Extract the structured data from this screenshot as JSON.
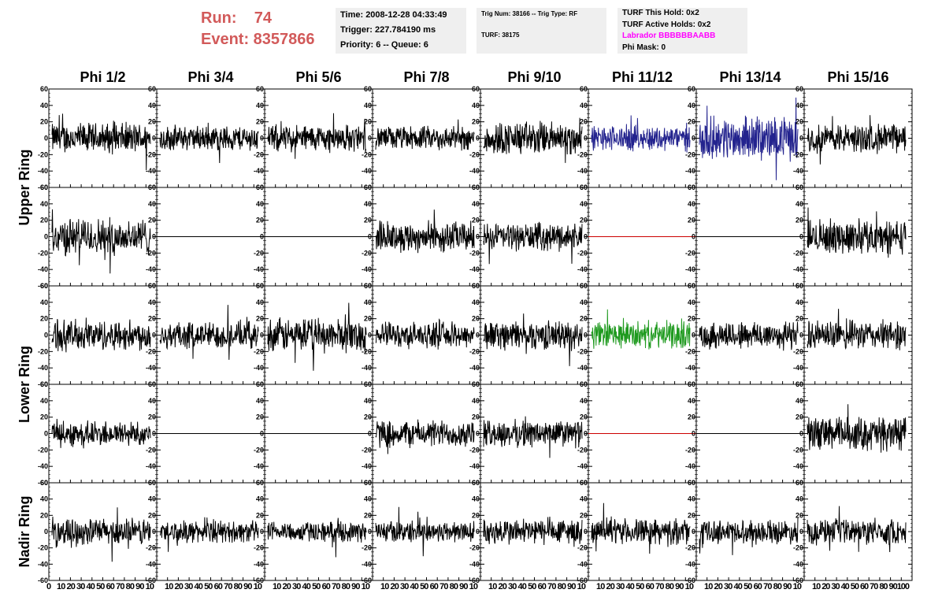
{
  "header": {
    "run_label": "Run:    74",
    "event_label": "Event: 8357866",
    "time_line": "Time: 2008-12-28 04:33:49",
    "trigger_line": "Trigger: 227.784190 ms",
    "priority_line": "Priority: 6 -- Queue: 6",
    "trig_num_line": "Trig Num: 38166 -- Trig Type: RF",
    "turf_line": "TURF: 38175",
    "turf_hold_line": "TURF This Hold: 0x2",
    "turf_active_line": "TURF Active Holds: 0x2",
    "labrador_line": "Labrador BBBBBBAABB",
    "phi_mask_line": "Phi Mask: 0"
  },
  "colors": {
    "header_text": "#d25a5a",
    "labrador_text": "#ff00ff",
    "info_bg": "#efefef",
    "trace_default": "#000000",
    "trace_blue": "#23238e",
    "trace_green": "#1f9a1f",
    "trace_red": "#cc0000"
  },
  "chart_data": {
    "type": "line",
    "columns": [
      "Phi 1/2",
      "Phi 3/4",
      "Phi 5/6",
      "Phi 7/8",
      "Phi 9/10",
      "Phi 11/12",
      "Phi 13/14",
      "Phi 15/16"
    ],
    "row_groups": [
      "Upper Ring",
      "Lower Ring",
      "Nadir Ring"
    ],
    "xlim": [
      0,
      100
    ],
    "ylim": [
      -60,
      60
    ],
    "yticks": [
      "60",
      "40",
      "20",
      "0",
      "-20",
      "-40",
      "-60"
    ],
    "xticks": [
      "0",
      "10",
      "20",
      "30",
      "40",
      "50",
      "60",
      "70",
      "80",
      "90",
      "100"
    ],
    "x_axis_text": [
      "0",
      "10 20 30 40 50 60 70 80 90 10",
      "10 20 30 40 50 60 70 80 90 10",
      "10 20 30 40 50 60 70 80 90 10",
      "10 20 30 40 50 60 70 80 90 10",
      "10 20 30 40 50 60 70 80 90 10",
      "10 20 30 40 50 60 70 80 90 10",
      "10 20 30 40 50 60 70 80 90 10",
      "10 20 30 40 50 60 70 80 90100"
    ],
    "panels": [
      [
        {
          "trace": "noise",
          "color": "black",
          "amp": 18
        },
        {
          "trace": "noise",
          "color": "black",
          "amp": 15
        },
        {
          "trace": "noise",
          "color": "black",
          "amp": 16
        },
        {
          "trace": "noise",
          "color": "black",
          "amp": 14
        },
        {
          "trace": "noise",
          "color": "black",
          "amp": 20
        },
        {
          "trace": "noise",
          "color": "blue",
          "amp": 15
        },
        {
          "trace": "noise",
          "color": "blue",
          "amp": 25
        },
        {
          "trace": "noise",
          "color": "black",
          "amp": 17
        }
      ],
      [
        {
          "trace": "noise",
          "color": "black",
          "amp": 22
        },
        {
          "trace": "flat",
          "color": "black",
          "amp": 0
        },
        {
          "trace": "flat",
          "color": "black",
          "amp": 0
        },
        {
          "trace": "noise",
          "color": "black",
          "amp": 18
        },
        {
          "trace": "noise",
          "color": "black",
          "amp": 16
        },
        {
          "trace": "flat",
          "color": "red",
          "amp": 0
        },
        {
          "trace": "flat",
          "color": "black",
          "amp": 0
        },
        {
          "trace": "noise",
          "color": "black",
          "amp": 20
        }
      ],
      [
        {
          "trace": "noise",
          "color": "black",
          "amp": 18
        },
        {
          "trace": "noise",
          "color": "black",
          "amp": 16
        },
        {
          "trace": "noise",
          "color": "black",
          "amp": 20
        },
        {
          "trace": "noise",
          "color": "black",
          "amp": 15
        },
        {
          "trace": "noise",
          "color": "black",
          "amp": 17
        },
        {
          "trace": "noise",
          "color": "green",
          "amp": 16
        },
        {
          "trace": "noise",
          "color": "black",
          "amp": 17
        },
        {
          "trace": "noise",
          "color": "black",
          "amp": 17
        }
      ],
      [
        {
          "trace": "noise",
          "color": "black",
          "amp": 15
        },
        {
          "trace": "flat",
          "color": "black",
          "amp": 0
        },
        {
          "trace": "flat",
          "color": "black",
          "amp": 0
        },
        {
          "trace": "noise",
          "color": "black",
          "amp": 16
        },
        {
          "trace": "noise",
          "color": "black",
          "amp": 16
        },
        {
          "trace": "flat",
          "color": "red",
          "amp": 0
        },
        {
          "trace": "flat",
          "color": "black",
          "amp": 0
        },
        {
          "trace": "noise",
          "color": "black",
          "amp": 20
        }
      ],
      [
        {
          "trace": "noise",
          "color": "black",
          "amp": 16
        },
        {
          "trace": "noise",
          "color": "black",
          "amp": 13
        },
        {
          "trace": "noise",
          "color": "black",
          "amp": 12
        },
        {
          "trace": "noise",
          "color": "black",
          "amp": 13
        },
        {
          "trace": "noise",
          "color": "black",
          "amp": 16
        },
        {
          "trace": "noise",
          "color": "black",
          "amp": 15
        },
        {
          "trace": "noise",
          "color": "black",
          "amp": 14
        },
        {
          "trace": "noise",
          "color": "black",
          "amp": 15
        }
      ]
    ]
  }
}
